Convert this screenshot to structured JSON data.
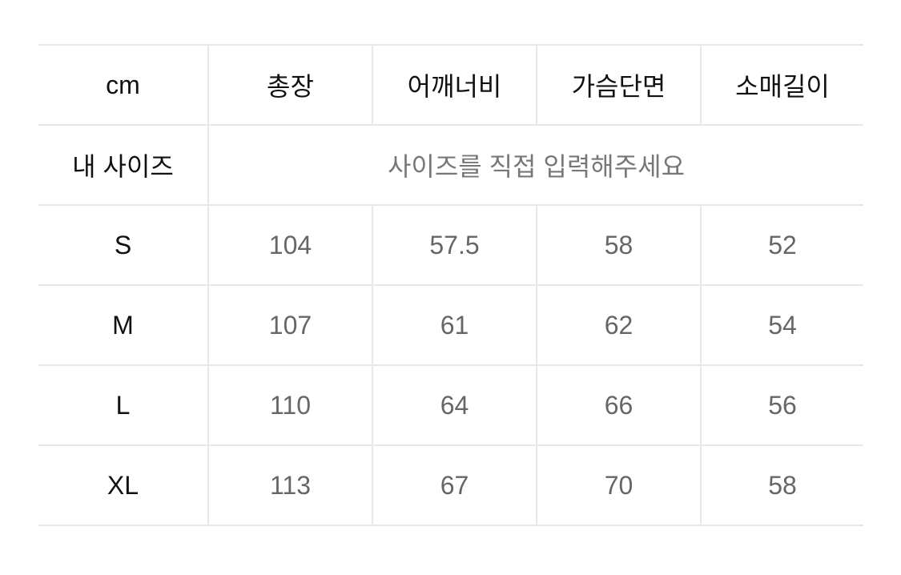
{
  "table": {
    "header": [
      "cm",
      "총장",
      "어깨너비",
      "가슴단면",
      "소매길이"
    ],
    "my_size": {
      "label": "내 사이즈",
      "placeholder": "사이즈를 직접 입력해주세요"
    },
    "rows": [
      {
        "size": "S",
        "values": [
          "104",
          "57.5",
          "58",
          "52"
        ]
      },
      {
        "size": "M",
        "values": [
          "107",
          "61",
          "62",
          "54"
        ]
      },
      {
        "size": "L",
        "values": [
          "110",
          "64",
          "66",
          "56"
        ]
      },
      {
        "size": "XL",
        "values": [
          "113",
          "67",
          "70",
          "58"
        ]
      }
    ]
  }
}
